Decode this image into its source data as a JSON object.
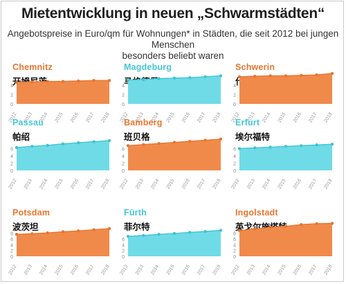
{
  "title": "Mietentwicklung in neuen „Schwarmstädten“",
  "subtitle_line1": "Angebotspreise in Euro/qm für Wohnungen* in Städten, die seit 2012 bei jungen Menschen",
  "subtitle_line2": "besonders beliebt waren",
  "colors": {
    "orange": "#f08a4b",
    "cyan": "#6fdbe6",
    "orange_dot": "#e8762f",
    "cyan_dot": "#3fc4d2"
  },
  "chart_data": [
    {
      "type": "area",
      "name": "Chemnitz",
      "label_cn": "开姆尼茨",
      "color": "orange",
      "x": [
        "2012",
        "2013",
        "2014",
        "2015",
        "2016",
        "2017",
        "2018"
      ],
      "values": [
        4.6,
        4.7,
        4.8,
        4.8,
        4.9,
        5.0,
        5.0
      ],
      "yticks": [
        0,
        2,
        4
      ],
      "ylim": [
        0,
        10
      ]
    },
    {
      "type": "area",
      "name": "Magdeburg",
      "label_cn": "马格德堡",
      "color": "cyan",
      "x": [
        "2012",
        "2013",
        "2014",
        "2015",
        "2016",
        "2017",
        "2018"
      ],
      "values": [
        5.1,
        5.2,
        5.4,
        5.5,
        5.6,
        5.8,
        6.0
      ],
      "yticks": [
        0,
        2,
        4
      ],
      "ylim": [
        0,
        10
      ]
    },
    {
      "type": "area",
      "name": "Schwerin",
      "label_cn": "什末林",
      "color": "orange",
      "x": [
        "2012",
        "2013",
        "2014",
        "2015",
        "2016",
        "2017",
        "2018"
      ],
      "values": [
        5.8,
        5.9,
        6.0,
        6.0,
        6.1,
        6.2,
        6.5
      ],
      "yticks": [
        0,
        2,
        4
      ],
      "ylim": [
        0,
        10
      ]
    },
    {
      "type": "area",
      "name": "Passau",
      "label_cn": "帕绍",
      "color": "cyan",
      "x": [
        "2012",
        "2013",
        "2014",
        "2015",
        "2016",
        "2017",
        "2018"
      ],
      "values": [
        6.3,
        6.6,
        6.9,
        7.3,
        7.6,
        7.9,
        8.2
      ],
      "yticks": [
        0,
        2,
        4,
        6
      ],
      "ylim": [
        0,
        10
      ]
    },
    {
      "type": "area",
      "name": "Bamberg",
      "label_cn": "班贝格",
      "color": "orange",
      "x": [
        "2012",
        "2013",
        "2014",
        "2015",
        "2016",
        "2017",
        "2018"
      ],
      "values": [
        6.8,
        7.1,
        7.4,
        7.7,
        8.0,
        8.3,
        8.6
      ],
      "yticks": [
        0,
        2,
        4,
        6
      ],
      "ylim": [
        0,
        10
      ]
    },
    {
      "type": "area",
      "name": "Erfurt",
      "label_cn": "埃尔福特",
      "color": "cyan",
      "x": [
        "2012",
        "2013",
        "2014",
        "2015",
        "2016",
        "2017",
        "2018"
      ],
      "values": [
        6.0,
        6.2,
        6.4,
        6.6,
        6.8,
        7.0,
        7.2
      ],
      "yticks": [
        0,
        2,
        4,
        6
      ],
      "ylim": [
        0,
        10
      ]
    },
    {
      "type": "area",
      "name": "Potsdam",
      "label_cn": "波茨坦",
      "color": "orange",
      "x": [
        "2012",
        "2013",
        "2014",
        "2015",
        "2016",
        "2017",
        "2018"
      ],
      "values": [
        7.6,
        7.8,
        8.1,
        8.5,
        8.8,
        9.2,
        9.6
      ],
      "yticks": [
        0,
        2,
        4,
        6,
        8
      ],
      "ylim": [
        0,
        12
      ]
    },
    {
      "type": "area",
      "name": "Fürth",
      "label_cn": "菲尔特",
      "color": "cyan",
      "x": [
        "2012",
        "2013",
        "2014",
        "2015",
        "2016",
        "2017",
        "2018"
      ],
      "values": [
        6.9,
        7.2,
        7.6,
        7.9,
        8.3,
        8.6,
        9.0
      ],
      "yticks": [
        0,
        2,
        4,
        6
      ],
      "ylim": [
        0,
        12
      ]
    },
    {
      "type": "area",
      "name": "Ingolstadt",
      "label_cn": "英戈尔施塔特",
      "color": "orange",
      "x": [
        "2012",
        "2013",
        "2014",
        "2015",
        "2016",
        "2017",
        "2018"
      ],
      "values": [
        8.9,
        9.5,
        10.0,
        10.4,
        11.0,
        11.3,
        11.4
      ],
      "yticks": [
        0,
        2,
        4,
        6,
        8
      ],
      "ylim": [
        0,
        12
      ]
    }
  ]
}
